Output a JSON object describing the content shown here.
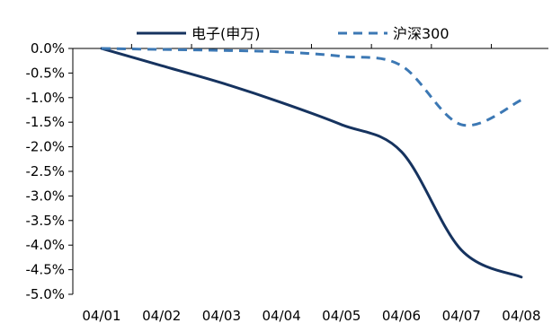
{
  "chart_data": {
    "type": "line",
    "title": "",
    "xlabel": "",
    "ylabel": "",
    "categories": [
      "04/01",
      "04/02",
      "04/03",
      "04/04",
      "04/05",
      "04/06",
      "04/07",
      "04/08"
    ],
    "ylim": [
      -5.0,
      0.0
    ],
    "y_ticks": [
      0.0,
      -0.5,
      -1.0,
      -1.5,
      -2.0,
      -2.5,
      -3.0,
      -3.5,
      -4.0,
      -4.5,
      -5.0
    ],
    "y_tick_labels": [
      "0.0%",
      "-0.5%",
      "-1.0%",
      "-1.5%",
      "-2.0%",
      "-2.5%",
      "-3.0%",
      "-3.5%",
      "-4.0%",
      "-4.5%",
      "-5.0%"
    ],
    "grid": false,
    "legend_position": "top",
    "series": [
      {
        "name": "电子(申万)",
        "style": "solid",
        "color": "#16335f",
        "values": [
          0.0,
          -0.35,
          -0.7,
          -1.1,
          -1.55,
          -2.1,
          -4.1,
          -4.65
        ]
      },
      {
        "name": "沪深300",
        "style": "dashed",
        "color": "#3c78b4",
        "values": [
          0.0,
          -0.02,
          -0.04,
          -0.07,
          -0.16,
          -0.35,
          -1.55,
          -1.05
        ]
      }
    ]
  }
}
